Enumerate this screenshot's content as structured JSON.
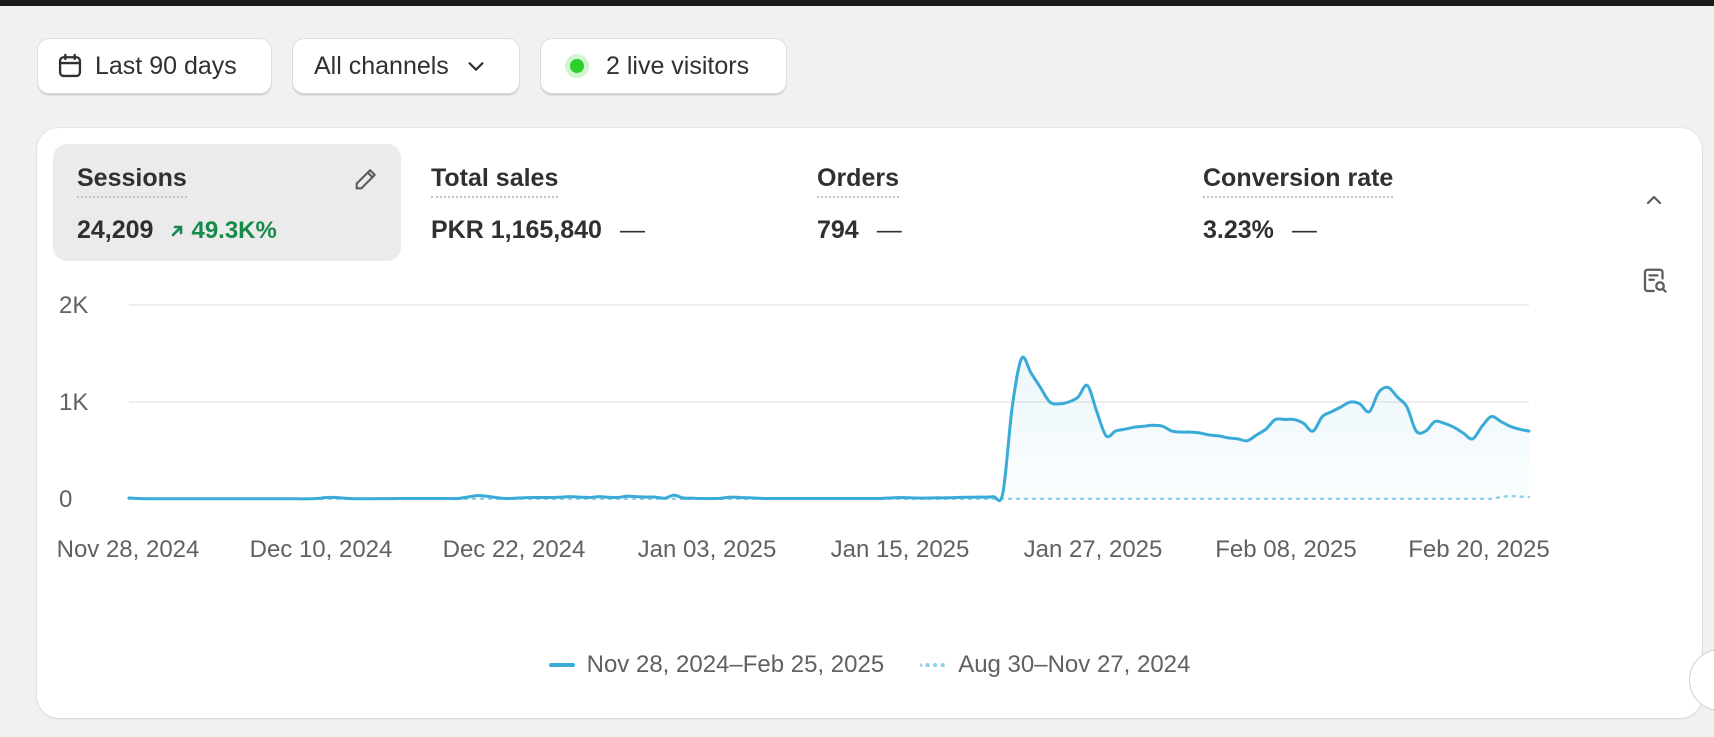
{
  "filters": {
    "date_range": "Last 90 days",
    "channels": "All channels",
    "live_visitors": "2 live visitors"
  },
  "metrics": [
    {
      "label": "Sessions",
      "value": "24,209",
      "change": "49.3K%",
      "active": true
    },
    {
      "label": "Total sales",
      "value": "PKR 1,165,840",
      "change": "—"
    },
    {
      "label": "Orders",
      "value": "794",
      "change": "—"
    },
    {
      "label": "Conversion rate",
      "value": "3.23%",
      "change": "—"
    }
  ],
  "icons": {
    "date": "calendar-icon",
    "channels": "chevron-down-icon",
    "live": "live-dot-icon",
    "edit": "pencil-icon",
    "collapse": "chevron-up-icon",
    "report": "search-report-icon",
    "trend": "arrow-up-right-icon"
  },
  "colors": {
    "primary_series": "#3aabd6",
    "comparison_series": "#8fd0ea",
    "positive_change": "#168a4a",
    "live_dot": "#2ad12a"
  },
  "chart_data": {
    "type": "line",
    "title": "",
    "xlabel": "",
    "ylabel": "",
    "ylim": [
      0,
      2000
    ],
    "y_ticks": [
      0,
      1000,
      2000
    ],
    "y_tick_labels": [
      "0",
      "1K",
      "2K"
    ],
    "x_tick_labels": [
      "Nov 28, 2024",
      "Dec 10, 2024",
      "Dec 22, 2024",
      "Jan 03, 2025",
      "Jan 15, 2025",
      "Jan 27, 2025",
      "Feb 08, 2025",
      "Feb 20, 2025"
    ],
    "grid": true,
    "legend": "bottom-center",
    "series": [
      {
        "name": "Nov 28, 2024–Feb 25, 2025",
        "style": "solid",
        "values": [
          10,
          5,
          3,
          2,
          2,
          2,
          2,
          2,
          2,
          2,
          2,
          2,
          2,
          2,
          2,
          2,
          2,
          2,
          2,
          2,
          5,
          15,
          15,
          8,
          3,
          3,
          3,
          4,
          4,
          5,
          5,
          5,
          5,
          5,
          5,
          5,
          20,
          35,
          30,
          15,
          5,
          8,
          12,
          15,
          15,
          15,
          20,
          25,
          20,
          15,
          25,
          18,
          15,
          30,
          25,
          20,
          20,
          8,
          40,
          10,
          8,
          5,
          5,
          8,
          20,
          15,
          12,
          8,
          5,
          5,
          5,
          5,
          5,
          5,
          5,
          5,
          5,
          5,
          5,
          5,
          5,
          10,
          15,
          12,
          10,
          10,
          12,
          12,
          15,
          18,
          20,
          20,
          25,
          60,
          950,
          1450,
          1300,
          1150,
          1000,
          980,
          1000,
          1050,
          1170,
          900,
          650,
          700,
          720,
          740,
          750,
          760,
          750,
          700,
          690,
          690,
          680,
          660,
          650,
          630,
          620,
          600,
          660,
          720,
          820,
          820,
          820,
          780,
          700,
          850,
          900,
          950,
          1000,
          980,
          900,
          1100,
          1150,
          1050,
          950,
          700,
          700,
          800,
          780,
          740,
          680,
          620,
          750,
          850,
          800,
          750,
          720,
          700
        ]
      },
      {
        "name": "Aug 30–Nov 27, 2024",
        "style": "dotted",
        "values": [
          2,
          2,
          2,
          2,
          2,
          2,
          2,
          2,
          2,
          2,
          2,
          2,
          2,
          2,
          2,
          2,
          2,
          2,
          2,
          2,
          2,
          2,
          2,
          2,
          2,
          2,
          2,
          2,
          2,
          2,
          2,
          2,
          2,
          2,
          2,
          2,
          2,
          2,
          2,
          2,
          2,
          2,
          2,
          2,
          2,
          2,
          2,
          2,
          2,
          2,
          2,
          2,
          2,
          2,
          2,
          2,
          2,
          2,
          2,
          2,
          2,
          2,
          2,
          2,
          2,
          2,
          2,
          2,
          2,
          2,
          2,
          2,
          2,
          2,
          2,
          2,
          2,
          2,
          2,
          2,
          2,
          2,
          2,
          2,
          2,
          2,
          2,
          2,
          2,
          2,
          2,
          2,
          2,
          2,
          2,
          2,
          2,
          2,
          2,
          2,
          2,
          2,
          2,
          2,
          2,
          2,
          2,
          2,
          2,
          2,
          2,
          2,
          2,
          2,
          2,
          2,
          2,
          2,
          2,
          2,
          2,
          2,
          2,
          2,
          2,
          2,
          2,
          2,
          2,
          2,
          2,
          2,
          2,
          2,
          2,
          2,
          2,
          2,
          2,
          2,
          2,
          2,
          2,
          2,
          2,
          2,
          20,
          30,
          25,
          20
        ]
      }
    ]
  }
}
